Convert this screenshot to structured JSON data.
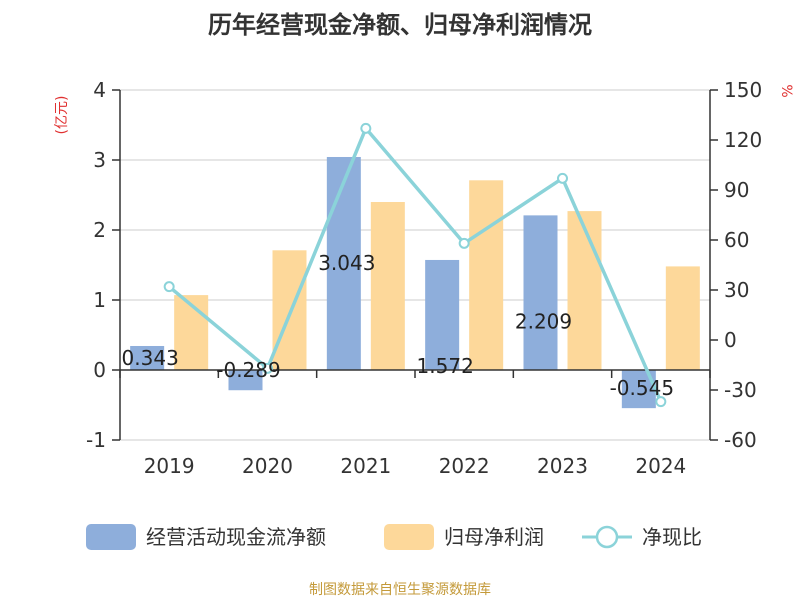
{
  "chart_data": {
    "type": "bar",
    "title": "历年经营现金净额、归母净利润情况",
    "categories": [
      "2019",
      "2020",
      "2021",
      "2022",
      "2023",
      "2024"
    ],
    "y_left": {
      "unit_label": "(亿元)",
      "ylim": [
        -1,
        4
      ],
      "ticks": [
        "-1",
        "0",
        "1",
        "2",
        "3",
        "4"
      ]
    },
    "y_right": {
      "unit_label": "%",
      "ylim": [
        -60,
        150
      ],
      "ticks": [
        "-60",
        "-30",
        "0",
        "30",
        "60",
        "90",
        "120",
        "150"
      ]
    },
    "series": [
      {
        "name": "经营活动现金流净额",
        "kind": "bar",
        "axis": "left",
        "color": "#8eaedb",
        "values": [
          0.343,
          -0.289,
          3.043,
          1.572,
          2.209,
          -0.545
        ],
        "labels": [
          "0.343",
          "-0.289",
          "3.043",
          "1.572",
          "2.209",
          "-0.545"
        ]
      },
      {
        "name": "归母净利润",
        "kind": "bar",
        "axis": "left",
        "color": "#fdd89a",
        "values": [
          1.07,
          1.71,
          2.4,
          2.71,
          2.27,
          1.48
        ]
      },
      {
        "name": "净现比",
        "kind": "line",
        "axis": "right",
        "color": "#8bd3d9",
        "values": [
          32,
          -17,
          127,
          58,
          97,
          -37
        ]
      }
    ],
    "grid": true,
    "legend_position": "bottom"
  },
  "source": {
    "text": "制图数据来自恒生聚源数据库",
    "color": "#c49a3a"
  },
  "colors": {
    "axis_unit": "#e03030"
  }
}
